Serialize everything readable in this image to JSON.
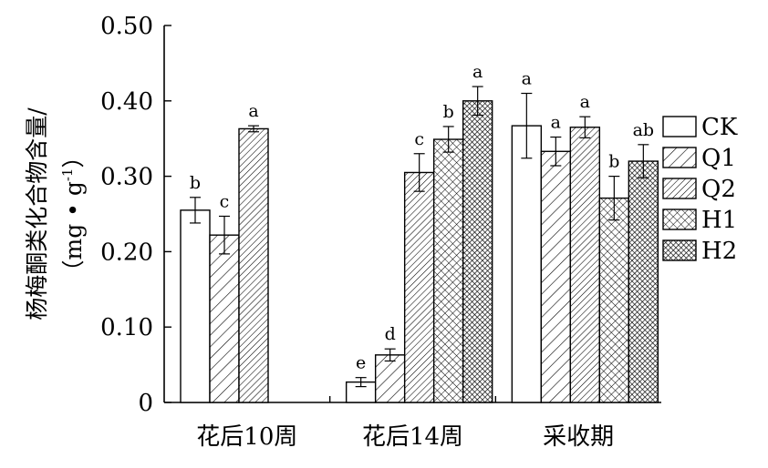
{
  "chart_data": {
    "type": "bar",
    "ylabel_line1": "杨梅酮类化合物含量/",
    "ylabel_line2": "（mg • g",
    "ylabel_sup": "-1",
    "ylabel_close": "）",
    "xlabel": "",
    "ylim": [
      0,
      0.5
    ],
    "yticks": [
      {
        "value": 0.5,
        "label": "0.50"
      },
      {
        "value": 0.4,
        "label": "0.40"
      },
      {
        "value": 0.3,
        "label": "0.30"
      },
      {
        "value": 0.2,
        "label": "0.20"
      },
      {
        "value": 0.1,
        "label": "0.10"
      },
      {
        "value": 0,
        "label": "0"
      }
    ],
    "categories": [
      "花后10周",
      "花后14周",
      "采收期"
    ],
    "legend_position": "right",
    "series": [
      {
        "name": "CK",
        "pattern": "blank",
        "values": [
          0.255,
          0.027,
          0.367
        ],
        "errors": [
          0.017,
          0.006,
          0.043
        ],
        "letters": [
          "b",
          "e",
          "a"
        ]
      },
      {
        "name": "Q1",
        "pattern": "diag-wide",
        "values": [
          0.222,
          0.063,
          0.333
        ],
        "errors": [
          0.025,
          0.008,
          0.019
        ],
        "letters": [
          "c",
          "d",
          "a"
        ]
      },
      {
        "name": "Q2",
        "pattern": "diag-dense",
        "values": [
          0.363,
          0.305,
          0.365
        ],
        "errors": [
          0.004,
          0.025,
          0.014
        ],
        "letters": [
          "a",
          "c",
          "a"
        ]
      },
      {
        "name": "H1",
        "pattern": "crosshatch",
        "values": [
          null,
          0.349,
          0.271
        ],
        "errors": [
          null,
          0.017,
          0.029
        ],
        "letters": [
          null,
          "b",
          "b"
        ]
      },
      {
        "name": "H2",
        "pattern": "dense-crosshatch",
        "values": [
          null,
          0.4,
          0.32
        ],
        "errors": [
          null,
          0.019,
          0.022
        ],
        "letters": [
          null,
          "a",
          "ab"
        ]
      }
    ]
  }
}
